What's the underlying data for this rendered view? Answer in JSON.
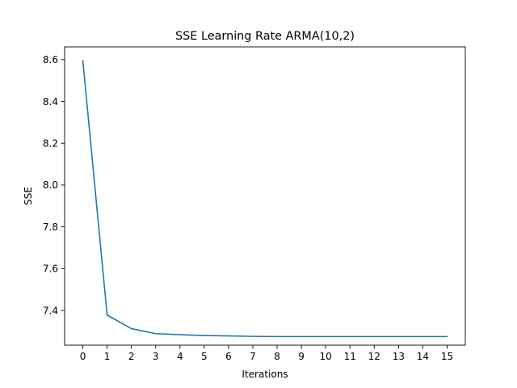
{
  "chart_data": {
    "type": "line",
    "title": "SSE Learning Rate ARMA(10,2)",
    "xlabel": "Iterations",
    "ylabel": "SSE",
    "x": [
      0,
      1,
      2,
      3,
      4,
      5,
      6,
      7,
      8,
      9,
      10,
      11,
      12,
      13,
      14,
      15
    ],
    "series": [
      {
        "values": [
          8.595,
          7.378,
          7.313,
          7.289,
          7.284,
          7.28,
          7.278,
          7.276,
          7.275,
          7.275,
          7.275,
          7.275,
          7.275,
          7.275,
          7.275,
          7.275
        ],
        "color": "#1f77b4"
      }
    ],
    "xticks": [
      "0",
      "1",
      "2",
      "3",
      "4",
      "5",
      "6",
      "7",
      "8",
      "9",
      "10",
      "11",
      "12",
      "13",
      "14",
      "15"
    ],
    "yticks": [
      "7.4",
      "7.6",
      "7.8",
      "8.0",
      "8.2",
      "8.4",
      "8.6"
    ],
    "xlim": [
      -0.75,
      15.75
    ],
    "ylim": [
      7.2339,
      8.6611
    ],
    "grid": false,
    "legend": "none"
  }
}
